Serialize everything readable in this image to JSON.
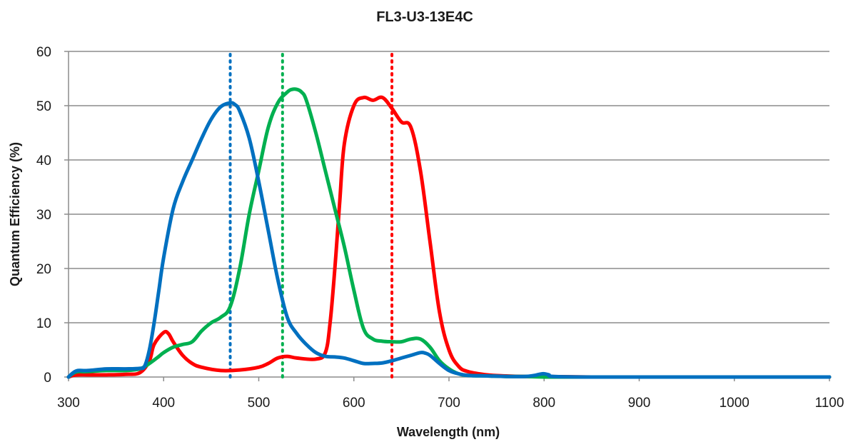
{
  "chart_data": {
    "type": "line",
    "title": "FL3-U3-13E4C",
    "xlabel": "Wavelength (nm)",
    "ylabel": "Quantum Efficiency (%)",
    "xlim": [
      300,
      1100
    ],
    "ylim": [
      0,
      60
    ],
    "x_ticks": [
      "300",
      "400",
      "500",
      "600",
      "700",
      "800",
      "900",
      "1000",
      "1100"
    ],
    "y_ticks": [
      "0",
      "10",
      "20",
      "30",
      "40",
      "50",
      "60"
    ],
    "grid": true,
    "legend": "none",
    "series": [
      {
        "color": "#ff0000",
        "x": [
          300,
          305,
          310,
          320,
          340,
          360,
          375,
          385,
          390,
          400,
          405,
          410,
          420,
          430,
          440,
          460,
          480,
          500,
          510,
          520,
          530,
          540,
          560,
          570,
          575,
          580,
          585,
          590,
          600,
          610,
          620,
          630,
          640,
          650,
          660,
          670,
          680,
          690,
          700,
          710,
          720,
          740,
          760,
          780,
          800,
          850,
          900,
          1000,
          1100
        ],
        "y": [
          0,
          0.3,
          0.4,
          0.4,
          0.4,
          0.5,
          0.8,
          3,
          6,
          8.2,
          8,
          6.5,
          4,
          2.5,
          1.8,
          1.2,
          1.3,
          1.8,
          2.5,
          3.5,
          3.8,
          3.5,
          3.3,
          4.5,
          10,
          20,
          32,
          43,
          50,
          51.5,
          51,
          51.5,
          49.5,
          47,
          46,
          38,
          25,
          12,
          5,
          2,
          1,
          0.4,
          0.2,
          0.1,
          0.1,
          0,
          0,
          0,
          0
        ]
      },
      {
        "color": "#00b050",
        "x": [
          300,
          305,
          310,
          320,
          340,
          360,
          375,
          385,
          395,
          400,
          410,
          420,
          430,
          440,
          450,
          460,
          470,
          480,
          490,
          500,
          510,
          520,
          530,
          535,
          540,
          545,
          550,
          560,
          570,
          580,
          590,
          600,
          610,
          620,
          630,
          640,
          650,
          660,
          670,
          680,
          690,
          700,
          710,
          720,
          740,
          760,
          780,
          800,
          850,
          900,
          1000,
          1100
        ],
        "y": [
          0,
          0.7,
          1,
          1,
          1.2,
          1.2,
          1.5,
          2.5,
          3.8,
          4.5,
          5.5,
          6,
          6.5,
          8.5,
          10,
          11,
          13,
          20,
          30,
          38,
          46,
          50.5,
          52.5,
          53,
          53,
          52.5,
          51,
          45,
          38,
          31,
          24,
          16,
          9,
          7,
          6.6,
          6.5,
          6.5,
          7,
          7,
          5.5,
          3,
          1.5,
          0.6,
          0.3,
          0.2,
          0.1,
          0.1,
          0,
          0,
          0,
          0,
          0
        ]
      },
      {
        "color": "#0070c0",
        "x": [
          300,
          305,
          310,
          320,
          340,
          360,
          375,
          380,
          385,
          390,
          395,
          400,
          410,
          420,
          430,
          440,
          450,
          460,
          470,
          475,
          480,
          490,
          500,
          510,
          520,
          530,
          540,
          550,
          560,
          570,
          580,
          590,
          600,
          610,
          620,
          630,
          640,
          650,
          660,
          670,
          675,
          680,
          690,
          700,
          710,
          720,
          740,
          760,
          780,
          790,
          795,
          800,
          805,
          810,
          850,
          900,
          1000,
          1100
        ],
        "y": [
          0,
          0.8,
          1.2,
          1.2,
          1.5,
          1.5,
          1.6,
          2,
          5,
          10,
          16,
          22,
          31,
          36,
          40,
          44,
          47.5,
          49.8,
          50.5,
          50.2,
          49,
          44,
          36,
          27,
          18,
          11,
          8,
          6,
          4.5,
          3.8,
          3.7,
          3.5,
          3,
          2.5,
          2.5,
          2.6,
          3,
          3.5,
          4,
          4.5,
          4.4,
          4,
          2.5,
          1.2,
          0.6,
          0.3,
          0.2,
          0.1,
          0.1,
          0.3,
          0.5,
          0.6,
          0.4,
          0.1,
          0,
          0,
          0,
          0
        ]
      }
    ],
    "reference_lines": [
      {
        "x": 470,
        "color": "#0070c0",
        "style": "dotted"
      },
      {
        "x": 525,
        "color": "#00b050",
        "style": "dotted"
      },
      {
        "x": 640,
        "color": "#ff0000",
        "style": "dotted"
      }
    ]
  }
}
